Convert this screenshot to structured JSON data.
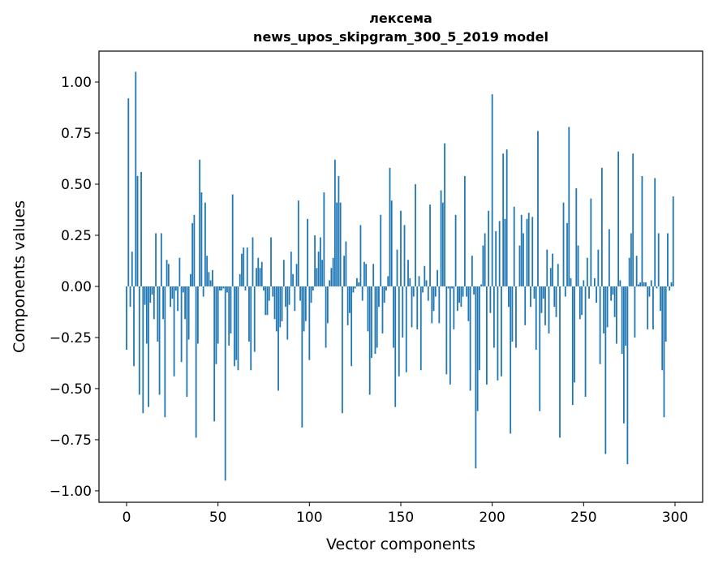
{
  "chart_data": {
    "type": "bar",
    "title_line1": "лексема",
    "title_line2": "news_upos_skipgram_300_5_2019 model",
    "xlabel": "Vector components",
    "ylabel": "Components values",
    "xlim": [
      -15.1,
      315.1
    ],
    "ylim": [
      -1.056,
      1.151
    ],
    "xticks": [
      0,
      50,
      100,
      150,
      200,
      250,
      300
    ],
    "xtick_labels": [
      "0",
      "50",
      "100",
      "150",
      "200",
      "250",
      "300"
    ],
    "yticks": [
      1.0,
      0.75,
      0.5,
      0.25,
      0.0,
      -0.25,
      -0.5,
      -0.75,
      -1.0
    ],
    "ytick_labels": [
      "1.00",
      "0.75",
      "0.50",
      "0.25",
      "0.00",
      "−0.25",
      "−0.50",
      "−0.75",
      "−1.00"
    ],
    "grid": false,
    "bar_color": "#1f77b4",
    "values": [
      -0.31,
      0.92,
      -0.1,
      0.17,
      -0.39,
      1.05,
      0.54,
      -0.53,
      0.56,
      -0.62,
      -0.09,
      -0.28,
      -0.59,
      -0.08,
      -0.04,
      -0.16,
      0.26,
      -0.27,
      -0.53,
      0.26,
      -0.16,
      -0.64,
      0.13,
      0.11,
      -0.1,
      -0.06,
      -0.44,
      -0.02,
      -0.12,
      0.14,
      -0.37,
      -0.03,
      -0.16,
      -0.54,
      -0.26,
      0.06,
      0.31,
      0.35,
      -0.74,
      -0.28,
      0.62,
      0.46,
      -0.05,
      0.41,
      0.15,
      0.07,
      0.03,
      0.08,
      -0.66,
      -0.38,
      -0.28,
      -0.02,
      -0.02,
      -0.01,
      -0.95,
      -0.03,
      -0.29,
      -0.23,
      0.45,
      -0.39,
      -0.36,
      -0.41,
      0.06,
      0.16,
      0.19,
      -0.02,
      0.19,
      -0.27,
      -0.41,
      0.24,
      -0.32,
      0.09,
      0.14,
      0.09,
      0.12,
      -0.02,
      -0.14,
      -0.14,
      -0.07,
      0.24,
      -0.05,
      -0.16,
      -0.22,
      -0.51,
      -0.2,
      -0.17,
      0.13,
      -0.1,
      -0.26,
      -0.09,
      0.17,
      0.06,
      -0.12,
      0.11,
      0.42,
      -0.07,
      -0.69,
      -0.22,
      -0.17,
      0.33,
      -0.36,
      -0.08,
      -0.02,
      0.25,
      0.09,
      0.17,
      0.24,
      0.13,
      0.46,
      -0.3,
      -0.18,
      0.03,
      0.09,
      0.14,
      0.62,
      0.41,
      0.54,
      0.41,
      -0.62,
      0.15,
      0.22,
      -0.19,
      -0.13,
      -0.39,
      -0.03,
      -0.01,
      0.04,
      0.02,
      0.3,
      -0.07,
      0.12,
      0.11,
      -0.22,
      -0.53,
      -0.35,
      0.11,
      -0.33,
      -0.3,
      -0.1,
      0.35,
      -0.23,
      -0.08,
      -0.02,
      0.05,
      0.58,
      0.42,
      -0.3,
      -0.59,
      0.18,
      -0.44,
      0.37,
      -0.25,
      0.3,
      -0.42,
      0.13,
      0.04,
      -0.2,
      -0.05,
      0.5,
      -0.21,
      0.05,
      -0.41,
      -0.03,
      0.1,
      0.03,
      -0.07,
      0.4,
      -0.18,
      -0.12,
      -0.05,
      0.08,
      -0.18,
      0.47,
      0.41,
      0.7,
      -0.43,
      -0.01,
      -0.48,
      -0.01,
      -0.21,
      0.35,
      -0.12,
      -0.08,
      -0.1,
      -0.05,
      0.54,
      -0.05,
      -0.17,
      -0.51,
      0.15,
      -0.04,
      -0.89,
      -0.61,
      -0.41,
      0.01,
      0.2,
      0.26,
      -0.48,
      0.37,
      -0.13,
      0.94,
      -0.3,
      0.27,
      -0.46,
      0.32,
      -0.44,
      0.65,
      0.33,
      0.67,
      -0.1,
      -0.72,
      -0.27,
      0.39,
      -0.3,
      0.0,
      0.2,
      0.35,
      0.26,
      -0.19,
      0.33,
      0.36,
      -0.1,
      0.34,
      -0.06,
      -0.31,
      0.76,
      -0.61,
      -0.13,
      -0.06,
      -0.19,
      0.18,
      -0.23,
      0.09,
      0.16,
      -0.1,
      -0.15,
      0.11,
      -0.74,
      0.0,
      0.41,
      -0.05,
      0.31,
      0.78,
      0.04,
      -0.58,
      -0.47,
      0.48,
      0.2,
      -0.16,
      -0.14,
      0.03,
      -0.54,
      0.14,
      -0.06,
      0.43,
      0.0,
      0.04,
      -0.08,
      0.18,
      -0.38,
      0.58,
      -0.23,
      -0.82,
      -0.2,
      0.28,
      -0.07,
      -0.04,
      -0.15,
      -0.28,
      0.66,
      0.03,
      -0.33,
      -0.67,
      -0.29,
      -0.87,
      0.14,
      0.26,
      0.65,
      -0.25,
      0.15,
      0.01,
      0.02,
      0.54,
      0.02,
      0.02,
      -0.21,
      -0.05,
      0.03,
      -0.21,
      0.53,
      -0.01,
      0.26,
      -0.12,
      -0.41,
      -0.64,
      -0.27,
      0.26,
      -0.02,
      0.02,
      0.44
    ]
  }
}
